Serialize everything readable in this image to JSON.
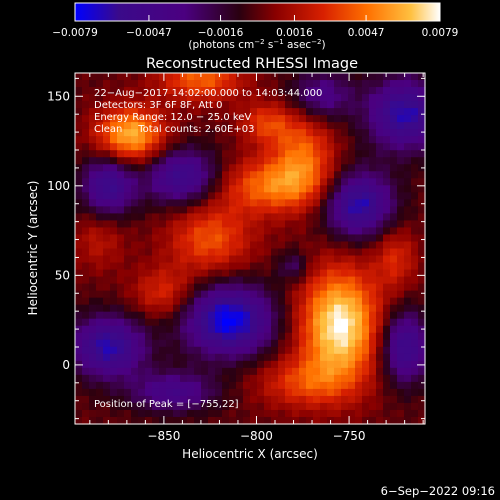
{
  "chart_data": {
    "type": "heatmap",
    "title": "Reconstructed RHESSI Image",
    "xlabel": "Heliocentric X (arcsec)",
    "ylabel": "Heliocentric Y (arcsec)",
    "xlim": [
      -898,
      -709
    ],
    "ylim": [
      -33,
      163
    ],
    "x_ticks": [
      {
        "value": -850,
        "label": "−850"
      },
      {
        "value": -800,
        "label": "−800"
      },
      {
        "value": -750,
        "label": "−750"
      }
    ],
    "y_ticks": [
      {
        "value": 0,
        "label": "0"
      },
      {
        "value": 50,
        "label": "50"
      },
      {
        "value": 100,
        "label": "100"
      },
      {
        "value": 150,
        "label": "150"
      }
    ],
    "colorbar": {
      "range": [
        -0.0079,
        0.0079
      ],
      "tick_values": [
        -0.0079,
        -0.0047,
        -0.0016,
        0.0016,
        0.0047,
        0.0079
      ],
      "tick_labels": [
        "−0.0079",
        "−0.0047",
        "−0.0016",
        "0.0016",
        "0.0047",
        "0.0079"
      ],
      "units_main": "(photons cm",
      "units_exp1": "−2",
      "units_mid": " s",
      "units_exp2": "−1",
      "units_end": " asec",
      "units_exp3": "−2",
      "units_close": ")",
      "colormap": [
        "#0000ff",
        "#3a0a8a",
        "#4b0080",
        "#2a0010",
        "#8a0000",
        "#d82000",
        "#ff7000",
        "#ffc040",
        "#ffffff"
      ]
    },
    "info_lines": [
      "22−Aug−2017 14:02:00.000 to 14:03:44.000",
      "Detectors: 3F 6F 8F, Att 0",
      "Energy Range: 12.0 − 25.0 keV",
      "Clean     Total counts: 2.60E+03"
    ],
    "peak_label": "Position of Peak = [−755,22]",
    "peak": {
      "x": -755,
      "y": 22
    },
    "blobs": [
      {
        "x": -755,
        "y": 22,
        "sx": 15,
        "sy": 22,
        "a": 1.0
      },
      {
        "x": -868,
        "y": 128,
        "sx": 13,
        "sy": 11,
        "a": 0.82
      },
      {
        "x": -830,
        "y": 160,
        "sx": 16,
        "sy": 9,
        "a": 0.55
      },
      {
        "x": -790,
        "y": 100,
        "sx": 22,
        "sy": 11,
        "a": 0.6
      },
      {
        "x": -775,
        "y": 120,
        "sx": 12,
        "sy": 16,
        "a": 0.5
      },
      {
        "x": -825,
        "y": 70,
        "sx": 16,
        "sy": 14,
        "a": 0.5
      },
      {
        "x": -850,
        "y": 40,
        "sx": 12,
        "sy": 10,
        "a": 0.38
      },
      {
        "x": -795,
        "y": 135,
        "sx": 10,
        "sy": 8,
        "a": 0.4
      },
      {
        "x": -725,
        "y": 60,
        "sx": 8,
        "sy": 12,
        "a": 0.35
      },
      {
        "x": -775,
        "y": -10,
        "sx": 18,
        "sy": 10,
        "a": 0.4
      },
      {
        "x": -885,
        "y": 70,
        "sx": 10,
        "sy": 12,
        "a": 0.25
      },
      {
        "x": -880,
        "y": 100,
        "sx": 10,
        "sy": 12,
        "a": -0.75
      },
      {
        "x": -880,
        "y": 10,
        "sx": 14,
        "sy": 12,
        "a": -0.85
      },
      {
        "x": -815,
        "y": 25,
        "sx": 17,
        "sy": 14,
        "a": -1.0
      },
      {
        "x": -840,
        "y": 105,
        "sx": 14,
        "sy": 11,
        "a": -0.75
      },
      {
        "x": -745,
        "y": 90,
        "sx": 13,
        "sy": 13,
        "a": -0.9
      },
      {
        "x": -720,
        "y": 140,
        "sx": 14,
        "sy": 14,
        "a": -0.85
      },
      {
        "x": -720,
        "y": 10,
        "sx": 9,
        "sy": 14,
        "a": -0.75
      },
      {
        "x": -845,
        "y": -15,
        "sx": 16,
        "sy": 8,
        "a": -0.55
      },
      {
        "x": -765,
        "y": 150,
        "sx": 12,
        "sy": 10,
        "a": -0.5
      },
      {
        "x": -780,
        "y": 55,
        "sx": 6,
        "sy": 6,
        "a": -0.35
      }
    ]
  },
  "footer": {
    "timestamp": "6−Sep−2022 09:16"
  }
}
